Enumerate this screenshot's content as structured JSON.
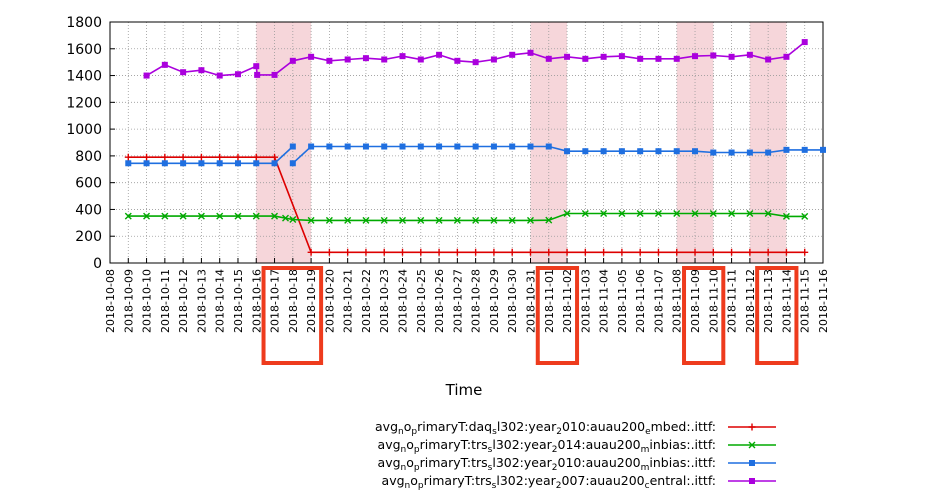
{
  "chart_data": {
    "type": "line",
    "title": "",
    "xlabel": "Time",
    "ylabel": "",
    "ylim": [
      0,
      1800
    ],
    "yticks": [
      0,
      200,
      400,
      600,
      800,
      1000,
      1200,
      1400,
      1600,
      1800
    ],
    "xlim": [
      "2018-10-08",
      "2018-11-16"
    ],
    "x_tick_labels": [
      "2018-10-08",
      "2018-10-09",
      "2018-10-10",
      "2018-10-11",
      "2018-10-12",
      "2018-10-13",
      "2018-10-14",
      "2018-10-15",
      "2018-10-16",
      "2018-10-17",
      "2018-10-18",
      "2018-10-19",
      "2018-10-20",
      "2018-10-21",
      "2018-10-22",
      "2018-10-23",
      "2018-10-24",
      "2018-10-25",
      "2018-10-26",
      "2018-10-27",
      "2018-10-28",
      "2018-10-29",
      "2018-10-30",
      "2018-10-31",
      "2018-11-01",
      "2018-11-02",
      "2018-11-03",
      "2018-11-04",
      "2018-11-05",
      "2018-11-06",
      "2018-11-07",
      "2018-11-08",
      "2018-11-09",
      "2018-11-10",
      "2018-11-11",
      "2018-11-12",
      "2018-11-13",
      "2018-11-14",
      "2018-11-15",
      "2018-11-16"
    ],
    "grid": true,
    "legend_position": "bottom-right",
    "shaded_ranges": [
      [
        "2018-10-16",
        "2018-10-19"
      ],
      [
        "2018-10-31",
        "2018-11-02"
      ],
      [
        "2018-11-08",
        "2018-11-10"
      ],
      [
        "2018-11-12",
        "2018-11-14"
      ]
    ],
    "highlighted_tick_groups": [
      [
        "2018-10-17",
        "2018-10-18",
        "2018-10-19"
      ],
      [
        "2018-11-01",
        "2018-11-02"
      ],
      [
        "2018-11-09",
        "2018-11-10"
      ],
      [
        "2018-11-13",
        "2018-11-14"
      ]
    ],
    "shade_color": "#f6d6da",
    "highlight_box_color": "#ee3b1d",
    "series": [
      {
        "name": "avg<sub>n</sub>o<sub>p</sub>rimaryT:daq<sub>s</sub>l302:year<sub>2</sub>010:auau200<sub>e</sub>mbed:.ittf:",
        "legend_parts": [
          [
            "avg",
            ""
          ],
          [
            "n",
            "sub"
          ],
          [
            "o",
            ""
          ],
          [
            "p",
            "sub"
          ],
          [
            "rimaryT:daq",
            ""
          ],
          [
            "s",
            "sub"
          ],
          [
            "l302:year",
            ""
          ],
          [
            "2",
            "sub"
          ],
          [
            "010:auau200",
            ""
          ],
          [
            "e",
            "sub"
          ],
          [
            "mbed:.ittf:",
            ""
          ]
        ],
        "color": "#dd0000",
        "marker": "plus",
        "points": [
          [
            "2018-10-09",
            790
          ],
          [
            "2018-10-10",
            790
          ],
          [
            "2018-10-11",
            790
          ],
          [
            "2018-10-12",
            790
          ],
          [
            "2018-10-13",
            790
          ],
          [
            "2018-10-14",
            790
          ],
          [
            "2018-10-15",
            790
          ],
          [
            "2018-10-16",
            790
          ],
          [
            "2018-10-17",
            790
          ],
          [
            "2018-10-19",
            80
          ],
          [
            "2018-10-20",
            80
          ],
          [
            "2018-10-21",
            80
          ],
          [
            "2018-10-22",
            80
          ],
          [
            "2018-10-23",
            80
          ],
          [
            "2018-10-24",
            80
          ],
          [
            "2018-10-25",
            80
          ],
          [
            "2018-10-26",
            80
          ],
          [
            "2018-10-27",
            80
          ],
          [
            "2018-10-28",
            80
          ],
          [
            "2018-10-29",
            80
          ],
          [
            "2018-10-30",
            80
          ],
          [
            "2018-10-31",
            80
          ],
          [
            "2018-11-01",
            80
          ],
          [
            "2018-11-02",
            80
          ],
          [
            "2018-11-03",
            80
          ],
          [
            "2018-11-04",
            80
          ],
          [
            "2018-11-05",
            80
          ],
          [
            "2018-11-06",
            80
          ],
          [
            "2018-11-07",
            80
          ],
          [
            "2018-11-08",
            80
          ],
          [
            "2018-11-09",
            80
          ],
          [
            "2018-11-10",
            80
          ],
          [
            "2018-11-11",
            80
          ],
          [
            "2018-11-12",
            80
          ],
          [
            "2018-11-13",
            80
          ],
          [
            "2018-11-14",
            80
          ],
          [
            "2018-11-15",
            80
          ]
        ]
      },
      {
        "name": "avg<sub>n</sub>o<sub>p</sub>rimaryT:trs<sub>s</sub>l302:year<sub>2</sub>014:auau200<sub>m</sub>inbias:.ittf:",
        "legend_parts": [
          [
            "avg",
            ""
          ],
          [
            "n",
            "sub"
          ],
          [
            "o",
            ""
          ],
          [
            "p",
            "sub"
          ],
          [
            "rimaryT:trs",
            ""
          ],
          [
            "s",
            "sub"
          ],
          [
            "l302:year",
            ""
          ],
          [
            "2",
            "sub"
          ],
          [
            "014:auau200",
            ""
          ],
          [
            "m",
            "sub"
          ],
          [
            "inbias:.ittf:",
            ""
          ]
        ],
        "color": "#00aa00",
        "marker": "x",
        "points": [
          [
            "2018-10-09",
            350
          ],
          [
            "2018-10-10",
            350
          ],
          [
            "2018-10-11",
            350
          ],
          [
            "2018-10-12",
            350
          ],
          [
            "2018-10-13",
            350
          ],
          [
            "2018-10-14",
            350
          ],
          [
            "2018-10-15",
            350
          ],
          [
            "2018-10-16",
            350
          ],
          [
            "2018-10-17",
            350
          ],
          [
            "2018-10-17.6",
            335
          ],
          [
            "2018-10-18",
            325
          ],
          [
            "2018-10-19",
            318
          ],
          [
            "2018-10-20",
            318
          ],
          [
            "2018-10-21",
            318
          ],
          [
            "2018-10-22",
            318
          ],
          [
            "2018-10-23",
            318
          ],
          [
            "2018-10-24",
            318
          ],
          [
            "2018-10-25",
            318
          ],
          [
            "2018-10-26",
            318
          ],
          [
            "2018-10-27",
            318
          ],
          [
            "2018-10-28",
            318
          ],
          [
            "2018-10-29",
            318
          ],
          [
            "2018-10-30",
            318
          ],
          [
            "2018-10-31",
            318
          ],
          [
            "2018-11-01",
            320
          ],
          [
            "2018-11-02",
            370
          ],
          [
            "2018-11-03",
            370
          ],
          [
            "2018-11-04",
            370
          ],
          [
            "2018-11-05",
            370
          ],
          [
            "2018-11-06",
            370
          ],
          [
            "2018-11-07",
            370
          ],
          [
            "2018-11-08",
            370
          ],
          [
            "2018-11-09",
            370
          ],
          [
            "2018-11-10",
            370
          ],
          [
            "2018-11-11",
            370
          ],
          [
            "2018-11-12",
            370
          ],
          [
            "2018-11-13",
            370
          ],
          [
            "2018-11-14",
            348
          ],
          [
            "2018-11-15",
            348
          ]
        ]
      },
      {
        "name": "avg<sub>n</sub>o<sub>p</sub>rimaryT:trs<sub>s</sub>l302:year<sub>2</sub>010:auau200<sub>m</sub>inbias:.ittf:",
        "legend_parts": [
          [
            "avg",
            ""
          ],
          [
            "n",
            "sub"
          ],
          [
            "o",
            ""
          ],
          [
            "p",
            "sub"
          ],
          [
            "rimaryT:trs",
            ""
          ],
          [
            "s",
            "sub"
          ],
          [
            "l302:year",
            ""
          ],
          [
            "2",
            "sub"
          ],
          [
            "010:auau200",
            ""
          ],
          [
            "m",
            "sub"
          ],
          [
            "inbias:.ittf:",
            ""
          ]
        ],
        "color": "#1f6fe0",
        "marker": "square",
        "segments": [
          [
            [
              "2018-10-09",
              745
            ],
            [
              "2018-10-10",
              745
            ],
            [
              "2018-10-11",
              745
            ],
            [
              "2018-10-12",
              745
            ],
            [
              "2018-10-13",
              745
            ],
            [
              "2018-10-14",
              745
            ],
            [
              "2018-10-15",
              745
            ],
            [
              "2018-10-16",
              745
            ],
            [
              "2018-10-17",
              745
            ],
            [
              "2018-10-18",
              870
            ]
          ],
          [
            [
              "2018-10-18",
              745
            ],
            [
              "2018-10-19",
              870
            ],
            [
              "2018-10-20",
              870
            ],
            [
              "2018-10-21",
              870
            ],
            [
              "2018-10-22",
              870
            ],
            [
              "2018-10-23",
              870
            ],
            [
              "2018-10-24",
              870
            ],
            [
              "2018-10-25",
              870
            ],
            [
              "2018-10-26",
              870
            ],
            [
              "2018-10-27",
              870
            ],
            [
              "2018-10-28",
              870
            ],
            [
              "2018-10-29",
              870
            ],
            [
              "2018-10-30",
              870
            ],
            [
              "2018-10-31",
              870
            ],
            [
              "2018-11-01",
              870
            ],
            [
              "2018-11-02",
              835
            ],
            [
              "2018-11-03",
              835
            ],
            [
              "2018-11-04",
              835
            ],
            [
              "2018-11-05",
              835
            ],
            [
              "2018-11-06",
              835
            ],
            [
              "2018-11-07",
              835
            ],
            [
              "2018-11-08",
              835
            ],
            [
              "2018-11-09",
              835
            ],
            [
              "2018-11-10",
              825
            ],
            [
              "2018-11-11",
              825
            ],
            [
              "2018-11-12",
              825
            ],
            [
              "2018-11-13",
              825
            ],
            [
              "2018-11-14",
              845
            ],
            [
              "2018-11-15",
              845
            ],
            [
              "2018-11-16",
              845
            ]
          ]
        ]
      },
      {
        "name": "avg<sub>n</sub>o<sub>p</sub>rimaryT:trs<sub>s</sub>l302:year<sub>2</sub>007:auau200<sub>c</sub>entral:.ittf:",
        "legend_parts": [
          [
            "avg",
            ""
          ],
          [
            "n",
            "sub"
          ],
          [
            "o",
            ""
          ],
          [
            "p",
            "sub"
          ],
          [
            "rimaryT:trs",
            ""
          ],
          [
            "s",
            "sub"
          ],
          [
            "l302:year",
            ""
          ],
          [
            "2",
            "sub"
          ],
          [
            "007:auau200",
            ""
          ],
          [
            "c",
            "sub"
          ],
          [
            "entral:.ittf:",
            ""
          ]
        ],
        "color": "#aa00dd",
        "marker": "square",
        "points": [
          [
            "2018-10-10",
            1400
          ],
          [
            "2018-10-11",
            1480
          ],
          [
            "2018-10-12",
            1425
          ],
          [
            "2018-10-13",
            1440
          ],
          [
            "2018-10-14",
            1400
          ],
          [
            "2018-10-15",
            1410
          ],
          [
            "2018-10-16",
            1470
          ],
          [
            "2018-10-16.05",
            1405
          ],
          [
            "2018-10-17",
            1405
          ],
          [
            "2018-10-18",
            1510
          ],
          [
            "2018-10-19",
            1540
          ],
          [
            "2018-10-20",
            1510
          ],
          [
            "2018-10-21",
            1520
          ],
          [
            "2018-10-22",
            1530
          ],
          [
            "2018-10-23",
            1520
          ],
          [
            "2018-10-24",
            1545
          ],
          [
            "2018-10-25",
            1520
          ],
          [
            "2018-10-26",
            1555
          ],
          [
            "2018-10-27",
            1510
          ],
          [
            "2018-10-28",
            1500
          ],
          [
            "2018-10-29",
            1520
          ],
          [
            "2018-10-30",
            1555
          ],
          [
            "2018-10-31",
            1570
          ],
          [
            "2018-11-01",
            1525
          ],
          [
            "2018-11-02",
            1540
          ],
          [
            "2018-11-03",
            1525
          ],
          [
            "2018-11-04",
            1540
          ],
          [
            "2018-11-05",
            1545
          ],
          [
            "2018-11-06",
            1525
          ],
          [
            "2018-11-07",
            1525
          ],
          [
            "2018-11-08",
            1525
          ],
          [
            "2018-11-09",
            1545
          ],
          [
            "2018-11-10",
            1550
          ],
          [
            "2018-11-11",
            1540
          ],
          [
            "2018-11-12",
            1555
          ],
          [
            "2018-11-13",
            1520
          ],
          [
            "2018-11-14",
            1540
          ],
          [
            "2018-11-15",
            1650
          ]
        ]
      }
    ]
  }
}
